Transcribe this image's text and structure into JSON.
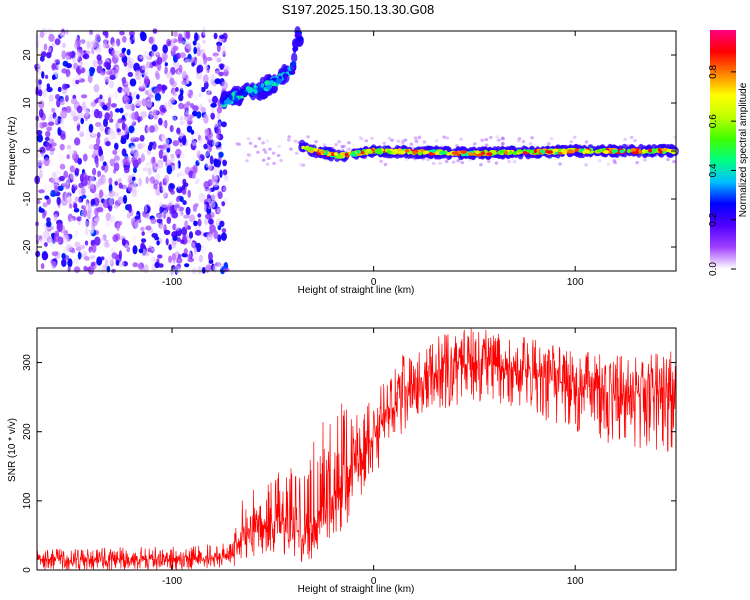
{
  "title": "S197.2025.150.13.30.G08",
  "chart_data": [
    {
      "type": "heatmap",
      "title": "S197.2025.150.13.30.G08",
      "xlabel": "Height of straight line (km)",
      "ylabel": "Frequency (Hz)",
      "xlim": [
        -167,
        150
      ],
      "ylim": [
        -25,
        25
      ],
      "xticks": [
        -100,
        0,
        100
      ],
      "yticks": [
        -20,
        -10,
        0,
        10,
        20
      ],
      "colorbar": {
        "label": "Normalized spectral amplitude",
        "range": [
          0,
          0.97
        ],
        "ticks": [
          0.0,
          0.2,
          0.4,
          0.6,
          0.8
        ],
        "colormap": [
          "#ffffff",
          "#a040ff",
          "#5000ff",
          "#0000ff",
          "#00c0ff",
          "#00ff80",
          "#40ff00",
          "#c0ff00",
          "#ffff00",
          "#ff8000",
          "#ff0000",
          "#ff0080"
        ]
      },
      "regions": [
        {
          "x": [
            -167,
            -73
          ],
          "description": "broadband noise",
          "amplitude": [
            0.0,
            0.3
          ]
        },
        {
          "x": [
            -75,
            -40
          ],
          "trace": [
            [
              -75,
              10
            ],
            [
              -65,
              12
            ],
            [
              -55,
              13
            ],
            [
              -47,
              15
            ],
            [
              -40,
              17
            ]
          ],
          "peak_amplitude": 0.45
        },
        {
          "x": [
            -40,
            -36
          ],
          "trace": [
            [
              -40,
              18
            ],
            [
              -38,
              24
            ]
          ],
          "peak_amplitude": 0.3
        },
        {
          "x": [
            -36,
            150
          ],
          "trace": [
            [
              -36,
              1
            ],
            [
              -30,
              0
            ],
            [
              -17,
              -1
            ],
            [
              0,
              0
            ],
            [
              50,
              -0.5
            ],
            [
              100,
              0
            ],
            [
              150,
              0
            ]
          ],
          "peak_amplitude": 0.95
        }
      ]
    },
    {
      "type": "line",
      "xlabel": "Height of straight line (km)",
      "ylabel": "SNR (10 * v/v)",
      "xlim": [
        -167,
        150
      ],
      "ylim": [
        0,
        350
      ],
      "xticks": [
        -100,
        0,
        100
      ],
      "yticks": [
        0,
        100,
        200,
        300
      ],
      "color": "#ff0000",
      "envelope": {
        "x": [
          -167,
          -100,
          -70,
          -65,
          -55,
          -45,
          -40,
          -35,
          -20,
          -10,
          0,
          10,
          20,
          30,
          50,
          70,
          100,
          120,
          150
        ],
        "mean": [
          15,
          16,
          20,
          50,
          65,
          75,
          60,
          45,
          110,
          150,
          190,
          240,
          270,
          290,
          300,
          290,
          265,
          255,
          245
        ],
        "low": [
          0,
          0,
          2,
          15,
          20,
          20,
          10,
          5,
          35,
          80,
          130,
          185,
          210,
          230,
          245,
          235,
          200,
          180,
          170
        ],
        "high": [
          30,
          35,
          40,
          105,
          125,
          155,
          145,
          140,
          270,
          220,
          255,
          300,
          325,
          340,
          350,
          340,
          320,
          310,
          320
        ]
      }
    }
  ]
}
